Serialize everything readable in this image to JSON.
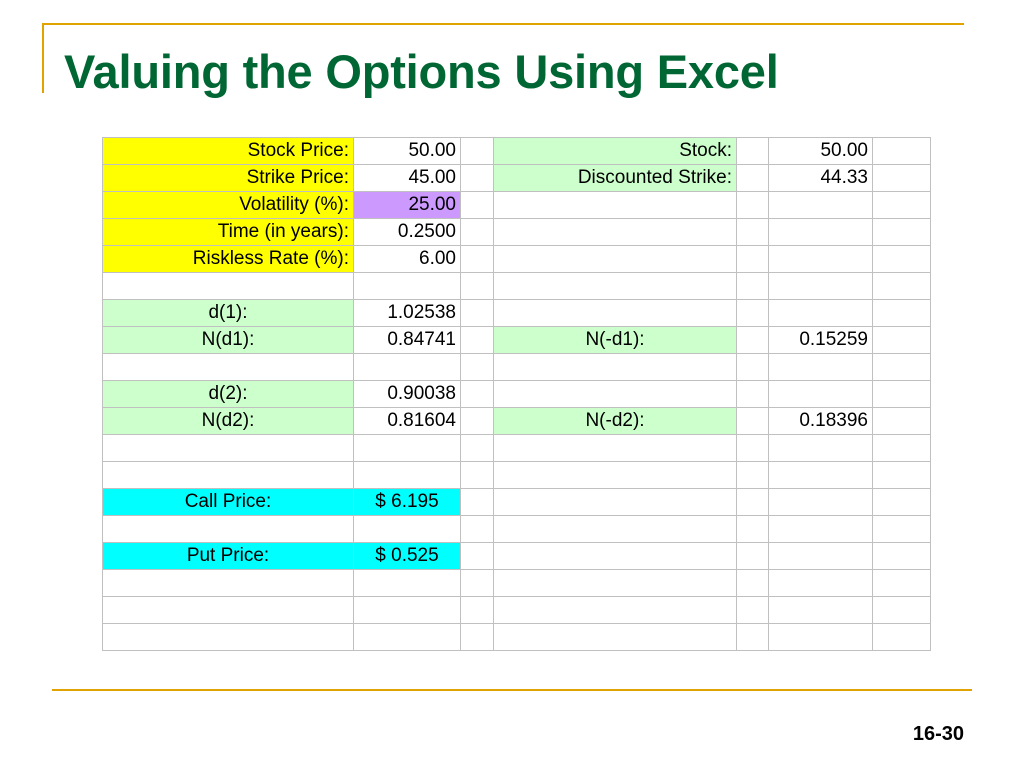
{
  "slide": {
    "title": "Valuing the Options Using Excel",
    "page_number": "16-30"
  },
  "sheet": {
    "rows": [
      {
        "label": "Stock Price:",
        "value": "50.00",
        "right_label": "Stock:",
        "right_value": "50.00"
      },
      {
        "label": "Strike Price:",
        "value": "45.00",
        "right_label": "Discounted Strike:",
        "right_value": "44.33"
      },
      {
        "label": "Volatility (%):",
        "value": "25.00",
        "right_label": "",
        "right_value": ""
      },
      {
        "label": "Time (in years):",
        "value": "0.2500",
        "right_label": "",
        "right_value": ""
      },
      {
        "label": "Riskless Rate (%):",
        "value": "6.00",
        "right_label": "",
        "right_value": ""
      },
      {
        "label": "",
        "value": "",
        "right_label": "",
        "right_value": ""
      },
      {
        "label": "d(1):",
        "value": "1.02538",
        "right_label": "",
        "right_value": ""
      },
      {
        "label": "N(d1):",
        "value": "0.84741",
        "right_label": "N(-d1):",
        "right_value": "0.15259"
      },
      {
        "label": "",
        "value": "",
        "right_label": "",
        "right_value": ""
      },
      {
        "label": "d(2):",
        "value": "0.90038",
        "right_label": "",
        "right_value": ""
      },
      {
        "label": "N(d2):",
        "value": "0.81604",
        "right_label": "N(-d2):",
        "right_value": "0.18396"
      },
      {
        "label": "",
        "value": "",
        "right_label": "",
        "right_value": ""
      },
      {
        "label": "",
        "value": "",
        "right_label": "",
        "right_value": ""
      },
      {
        "label": "Call Price:",
        "value": "$ 6.195",
        "right_label": "",
        "right_value": ""
      },
      {
        "label": "",
        "value": "",
        "right_label": "",
        "right_value": ""
      },
      {
        "label": "Put Price:",
        "value": "$ 0.525",
        "right_label": "",
        "right_value": ""
      },
      {
        "label": "",
        "value": "",
        "right_label": "",
        "right_value": ""
      },
      {
        "label": "",
        "value": "",
        "right_label": "",
        "right_value": ""
      },
      {
        "label": "",
        "value": "",
        "right_label": "",
        "right_value": ""
      }
    ]
  },
  "colors": {
    "title": "#006633",
    "accent_rule": "#e0a300",
    "input_fill": "#ffff00",
    "calc_fill": "#ccffcc",
    "result_fill": "#00ffff",
    "highlight_fill": "#cc99ff"
  }
}
